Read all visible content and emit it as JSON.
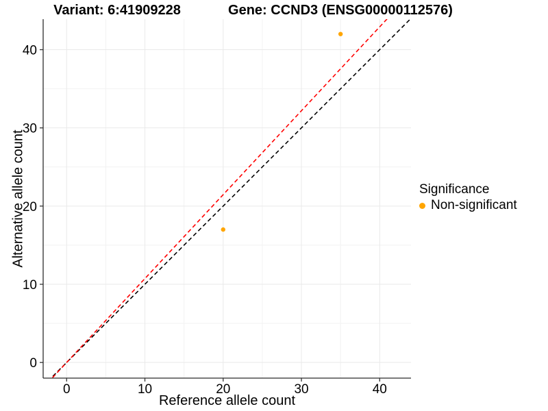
{
  "chart_data": {
    "type": "scatter",
    "title_left": "Variant: 6:41909228",
    "title_right": "Gene: CCND3 (ENSG00000112576)",
    "xlabel": "Reference allele count",
    "ylabel": "Alternative allele count",
    "xlim": [
      -3,
      44
    ],
    "ylim": [
      -2,
      43.9
    ],
    "x_ticks": [
      0,
      10,
      20,
      30,
      40
    ],
    "y_ticks": [
      0,
      10,
      20,
      30,
      40
    ],
    "x_minor_ticks": [
      5,
      15,
      25,
      35
    ],
    "y_minor_ticks": [
      5,
      15,
      25,
      35
    ],
    "grid": true,
    "legend_position": "right",
    "series": [
      {
        "name": "Non-significant",
        "color": "#FFA500",
        "points": [
          {
            "x": 20,
            "y": 17
          },
          {
            "x": 35,
            "y": 42
          }
        ]
      }
    ],
    "reference_lines": [
      {
        "name": "identity-line",
        "slope": 1.0,
        "intercept": 0,
        "color": "#000000",
        "style": "dashed"
      },
      {
        "name": "fitted-proportion-line",
        "slope": 1.073,
        "intercept": 0,
        "color": "#FF0000",
        "style": "dashed"
      }
    ],
    "legend": {
      "title": "Significance",
      "items": [
        {
          "label": "Non-significant",
          "color": "#FFA500"
        }
      ]
    },
    "colors": {
      "grid_major": "#E9E9E9",
      "grid_minor": "#F2F2F2",
      "axis_line": "#2B2B2B",
      "tick_mark": "#333333",
      "text": "#000000"
    }
  }
}
